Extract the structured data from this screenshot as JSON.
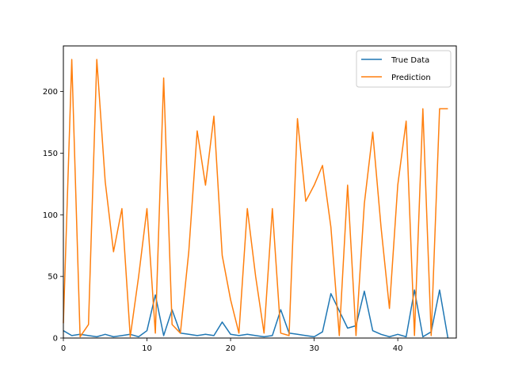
{
  "chart_data": {
    "type": "line",
    "title": "",
    "xlabel": "",
    "ylabel": "",
    "xlim": [
      0,
      47
    ],
    "ylim": [
      0,
      237
    ],
    "xticks": [
      0,
      10,
      20,
      30,
      40
    ],
    "yticks": [
      0,
      50,
      100,
      150,
      200
    ],
    "grid": false,
    "legend_position": "top-right",
    "series": [
      {
        "name": "True Data",
        "color": "#1f77b4",
        "x": [
          0,
          1,
          2,
          3,
          4,
          5,
          6,
          7,
          8,
          9,
          10,
          11,
          12,
          13,
          14,
          15,
          16,
          17,
          18,
          19,
          20,
          21,
          22,
          23,
          24,
          25,
          26,
          27,
          28,
          29,
          30,
          31,
          32,
          33,
          34,
          35,
          36,
          37,
          38,
          39,
          40,
          41,
          42,
          43,
          44,
          45,
          46
        ],
        "values": [
          6,
          2,
          3,
          2,
          1,
          3,
          1,
          2,
          3,
          1,
          6,
          35,
          2,
          23,
          4,
          3,
          2,
          3,
          2,
          13,
          3,
          2,
          3,
          2,
          1,
          2,
          23,
          4,
          3,
          2,
          1,
          5,
          36,
          22,
          8,
          10,
          38,
          6,
          3,
          1,
          3,
          1,
          39,
          1,
          5,
          39,
          0
        ]
      },
      {
        "name": "Prediction",
        "color": "#ff7f0e",
        "x": [
          0,
          1,
          2,
          3,
          4,
          5,
          6,
          7,
          8,
          9,
          10,
          11,
          12,
          13,
          14,
          15,
          16,
          17,
          18,
          19,
          20,
          21,
          22,
          23,
          24,
          25,
          26,
          27,
          28,
          29,
          30,
          31,
          32,
          33,
          34,
          35,
          36,
          37,
          38,
          39,
          40,
          41,
          42,
          43,
          44,
          45,
          46
        ],
        "values": [
          12,
          226,
          1,
          11,
          226,
          127,
          70,
          105,
          1,
          50,
          105,
          4,
          211,
          11,
          4,
          70,
          168,
          124,
          180,
          67,
          31,
          4,
          105,
          50,
          4,
          105,
          4,
          2,
          178,
          111,
          124,
          140,
          90,
          2,
          124,
          2,
          109,
          167,
          90,
          24,
          124,
          176,
          2,
          186,
          2,
          186,
          186
        ]
      }
    ]
  }
}
